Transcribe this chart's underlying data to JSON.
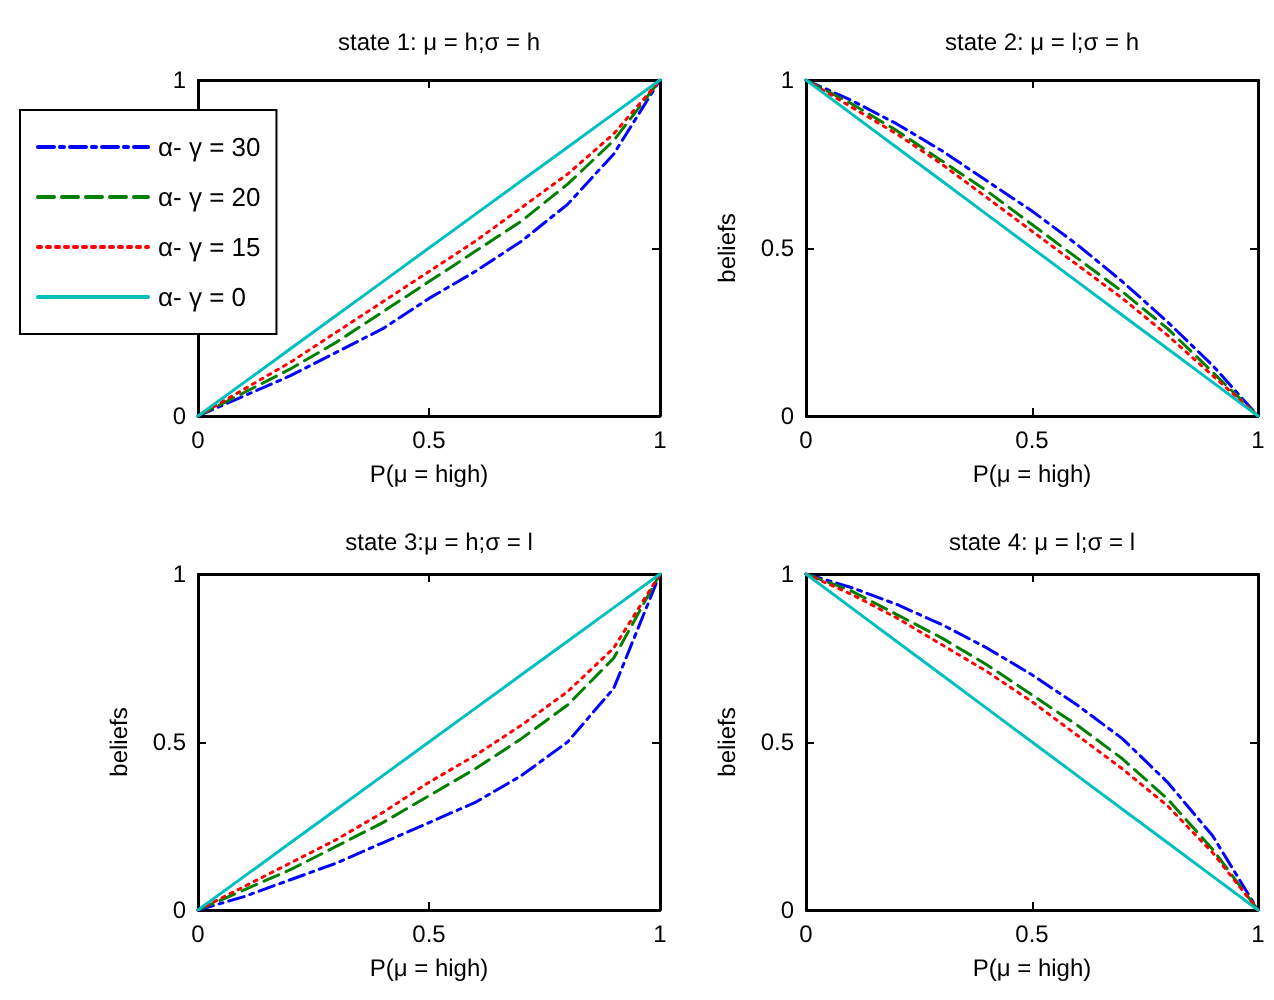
{
  "chart_data": [
    {
      "type": "line",
      "title": "state 1: μ = h;σ = h",
      "xlabel": "P(μ = high)",
      "x": [
        0,
        0.1,
        0.2,
        0.3,
        0.4,
        0.5,
        0.6,
        0.7,
        0.8,
        0.9,
        1
      ],
      "xlim": [
        0,
        1
      ],
      "xticks": [
        0,
        0.5,
        1
      ],
      "ylim": [
        0,
        1
      ],
      "yticks": [
        0,
        {
          "value": 0.5,
          "label": null
        },
        1
      ],
      "grid": false,
      "legend": "top left",
      "marker": "none",
      "series": [
        {
          "name": "α- γ = 30",
          "color": "#0000ff",
          "line_style": "dashdot",
          "values": [
            0,
            0.06,
            0.12,
            0.19,
            0.26,
            0.35,
            0.43,
            0.52,
            0.63,
            0.78,
            1
          ]
        },
        {
          "name": "α- γ = 20",
          "color": "#008000",
          "line_style": "dashed",
          "values": [
            0,
            0.07,
            0.14,
            0.22,
            0.31,
            0.4,
            0.49,
            0.58,
            0.69,
            0.82,
            1
          ]
        },
        {
          "name": "α- γ = 15",
          "color": "#ff0000",
          "line_style": "dotted",
          "values": [
            0,
            0.08,
            0.16,
            0.25,
            0.34,
            0.43,
            0.52,
            0.62,
            0.72,
            0.84,
            1
          ]
        },
        {
          "name": "α- γ = 0",
          "color": "#00bfbf",
          "line_style": "solid",
          "values": [
            0,
            0.1,
            0.2,
            0.3,
            0.4,
            0.5,
            0.6,
            0.7,
            0.8,
            0.9,
            1
          ]
        }
      ]
    },
    {
      "type": "line",
      "title": "state 2: μ = l;σ = h",
      "xlabel": "P(μ = high)",
      "ylabel": "beliefs",
      "x": [
        0,
        0.1,
        0.2,
        0.3,
        0.4,
        0.5,
        0.6,
        0.7,
        0.8,
        0.9,
        1
      ],
      "xlim": [
        0,
        1
      ],
      "xticks": [
        0,
        0.5,
        1
      ],
      "ylim": [
        0,
        1
      ],
      "yticks": [
        0,
        0.5,
        1
      ],
      "grid": false,
      "marker": "none",
      "series": [
        {
          "color": "#0000ff",
          "line_style": "dashdot",
          "values": [
            1,
            0.94,
            0.87,
            0.79,
            0.7,
            0.61,
            0.51,
            0.4,
            0.28,
            0.15,
            0
          ]
        },
        {
          "color": "#008000",
          "line_style": "dashed",
          "values": [
            1,
            0.93,
            0.85,
            0.76,
            0.67,
            0.57,
            0.47,
            0.37,
            0.26,
            0.13,
            0
          ]
        },
        {
          "color": "#ff0000",
          "line_style": "dotted",
          "values": [
            1,
            0.92,
            0.84,
            0.75,
            0.65,
            0.55,
            0.45,
            0.35,
            0.24,
            0.12,
            0
          ]
        },
        {
          "color": "#00bfbf",
          "line_style": "solid",
          "values": [
            1,
            0.9,
            0.8,
            0.7,
            0.6,
            0.5,
            0.4,
            0.3,
            0.2,
            0.1,
            0
          ]
        }
      ]
    },
    {
      "type": "line",
      "title": "state 3:μ = h;σ = l",
      "xlabel": "P(μ = high)",
      "ylabel": "beliefs",
      "x": [
        0,
        0.1,
        0.2,
        0.3,
        0.4,
        0.5,
        0.6,
        0.7,
        0.8,
        0.9,
        1
      ],
      "xlim": [
        0,
        1
      ],
      "xticks": [
        0,
        0.5,
        1
      ],
      "ylim": [
        0,
        1
      ],
      "yticks": [
        0,
        0.5,
        1
      ],
      "grid": false,
      "marker": "none",
      "series": [
        {
          "color": "#0000ff",
          "line_style": "dashdot",
          "values": [
            0,
            0.04,
            0.09,
            0.14,
            0.2,
            0.26,
            0.32,
            0.4,
            0.5,
            0.66,
            1
          ]
        },
        {
          "color": "#008000",
          "line_style": "dashed",
          "values": [
            0,
            0.06,
            0.12,
            0.19,
            0.26,
            0.34,
            0.42,
            0.51,
            0.61,
            0.75,
            1
          ]
        },
        {
          "color": "#ff0000",
          "line_style": "dotted",
          "values": [
            0,
            0.07,
            0.14,
            0.21,
            0.29,
            0.38,
            0.46,
            0.55,
            0.65,
            0.78,
            1
          ]
        },
        {
          "color": "#00bfbf",
          "line_style": "solid",
          "values": [
            0,
            0.1,
            0.2,
            0.3,
            0.4,
            0.5,
            0.6,
            0.7,
            0.8,
            0.9,
            1
          ]
        }
      ]
    },
    {
      "type": "line",
      "title": "state 4: μ = l;σ = l",
      "xlabel": "P(μ = high)",
      "ylabel": "beliefs",
      "x": [
        0,
        0.1,
        0.2,
        0.3,
        0.4,
        0.5,
        0.6,
        0.7,
        0.8,
        0.9,
        1
      ],
      "xlim": [
        0,
        1
      ],
      "xticks": [
        0,
        0.5,
        1
      ],
      "ylim": [
        0,
        1
      ],
      "yticks": [
        0,
        0.5,
        1
      ],
      "grid": false,
      "marker": "none",
      "series": [
        {
          "color": "#0000ff",
          "line_style": "dashdot",
          "values": [
            1,
            0.96,
            0.91,
            0.85,
            0.78,
            0.7,
            0.61,
            0.51,
            0.38,
            0.22,
            0
          ]
        },
        {
          "color": "#008000",
          "line_style": "dashed",
          "values": [
            1,
            0.95,
            0.88,
            0.81,
            0.73,
            0.64,
            0.55,
            0.45,
            0.33,
            0.18,
            0
          ]
        },
        {
          "color": "#ff0000",
          "line_style": "dotted",
          "values": [
            1,
            0.94,
            0.87,
            0.79,
            0.71,
            0.62,
            0.52,
            0.42,
            0.31,
            0.17,
            0
          ]
        },
        {
          "color": "#00bfbf",
          "line_style": "solid",
          "values": [
            1,
            0.9,
            0.8,
            0.7,
            0.6,
            0.5,
            0.4,
            0.3,
            0.2,
            0.1,
            0
          ]
        }
      ]
    }
  ]
}
